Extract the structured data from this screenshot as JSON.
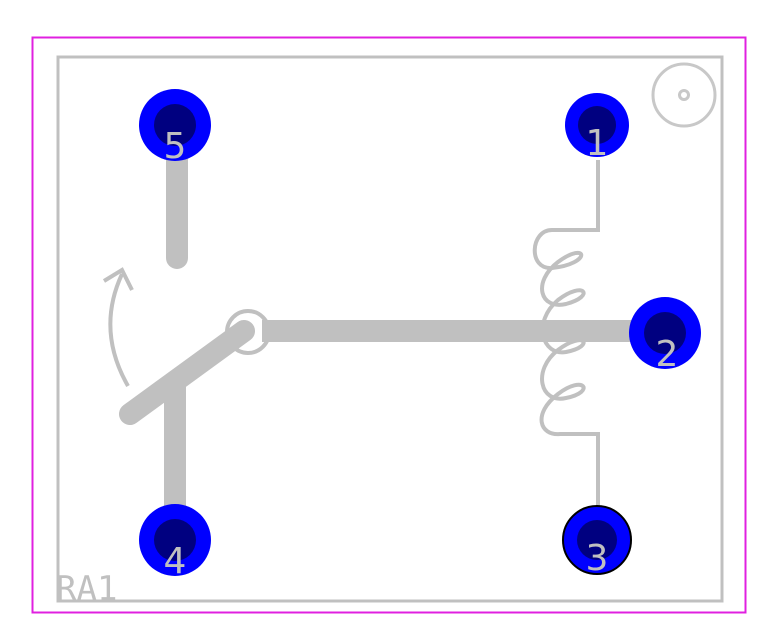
{
  "component": {
    "reference": "RA1"
  },
  "pins": [
    {
      "id": "pin-1",
      "label": "1"
    },
    {
      "id": "pin-2",
      "label": "2"
    },
    {
      "id": "pin-3",
      "label": "3"
    },
    {
      "id": "pin-4",
      "label": "4"
    },
    {
      "id": "pin-5",
      "label": "5"
    }
  ],
  "colors": {
    "board_outline": "#e020e0",
    "silkscreen": "#c0c0c0",
    "pad_ring": "#0000ff",
    "pad_hole": "#000080",
    "background": "#ffffff"
  }
}
